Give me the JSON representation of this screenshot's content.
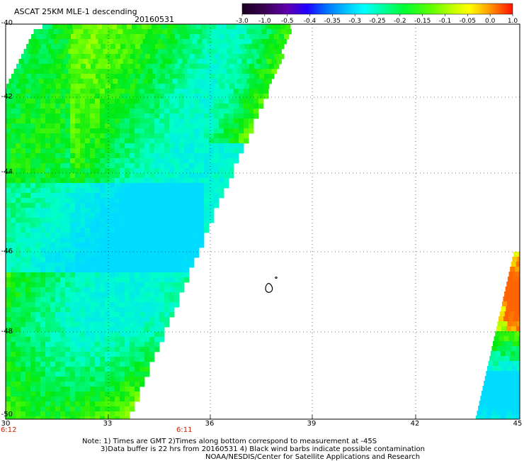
{
  "title": "ASCAT 25KM MLE-1 descending",
  "date": "20160531",
  "colorbar": {
    "labels": [
      "-3.0",
      "-1.0",
      "-0.5",
      "-0.4",
      "-0.35",
      "-0.3",
      "-0.25",
      "-0.2",
      "-0.15",
      "-0.1",
      "-0.05",
      "0.0",
      "1.0"
    ],
    "colors": [
      "#2a0030",
      "#5a0080",
      "#3000ff",
      "#0060ff",
      "#00b0ff",
      "#00ffff",
      "#00ff80",
      "#00ff00",
      "#80ff00",
      "#ffff00",
      "#ffa000",
      "#ff4000",
      "#ff0000"
    ]
  },
  "axes": {
    "lat_labels": [
      "-40",
      "-42",
      "-44",
      "-46",
      "-48",
      "-50"
    ],
    "lon_labels": [
      "30",
      "33",
      "36",
      "39",
      "42",
      "45"
    ]
  },
  "times": {
    "left": "6:12",
    "mid": "6:11"
  },
  "notes": {
    "line1": "Note: 1) Times are GMT 2)Times along bottom correspond to measurement at -45S",
    "line2": "3)Data buffer is 22 hrs from 20160531 4) Black wind barbs indicate possible contamination",
    "line3": "NOAA/NESDIS/Center for Satellite Applications and Research"
  }
}
